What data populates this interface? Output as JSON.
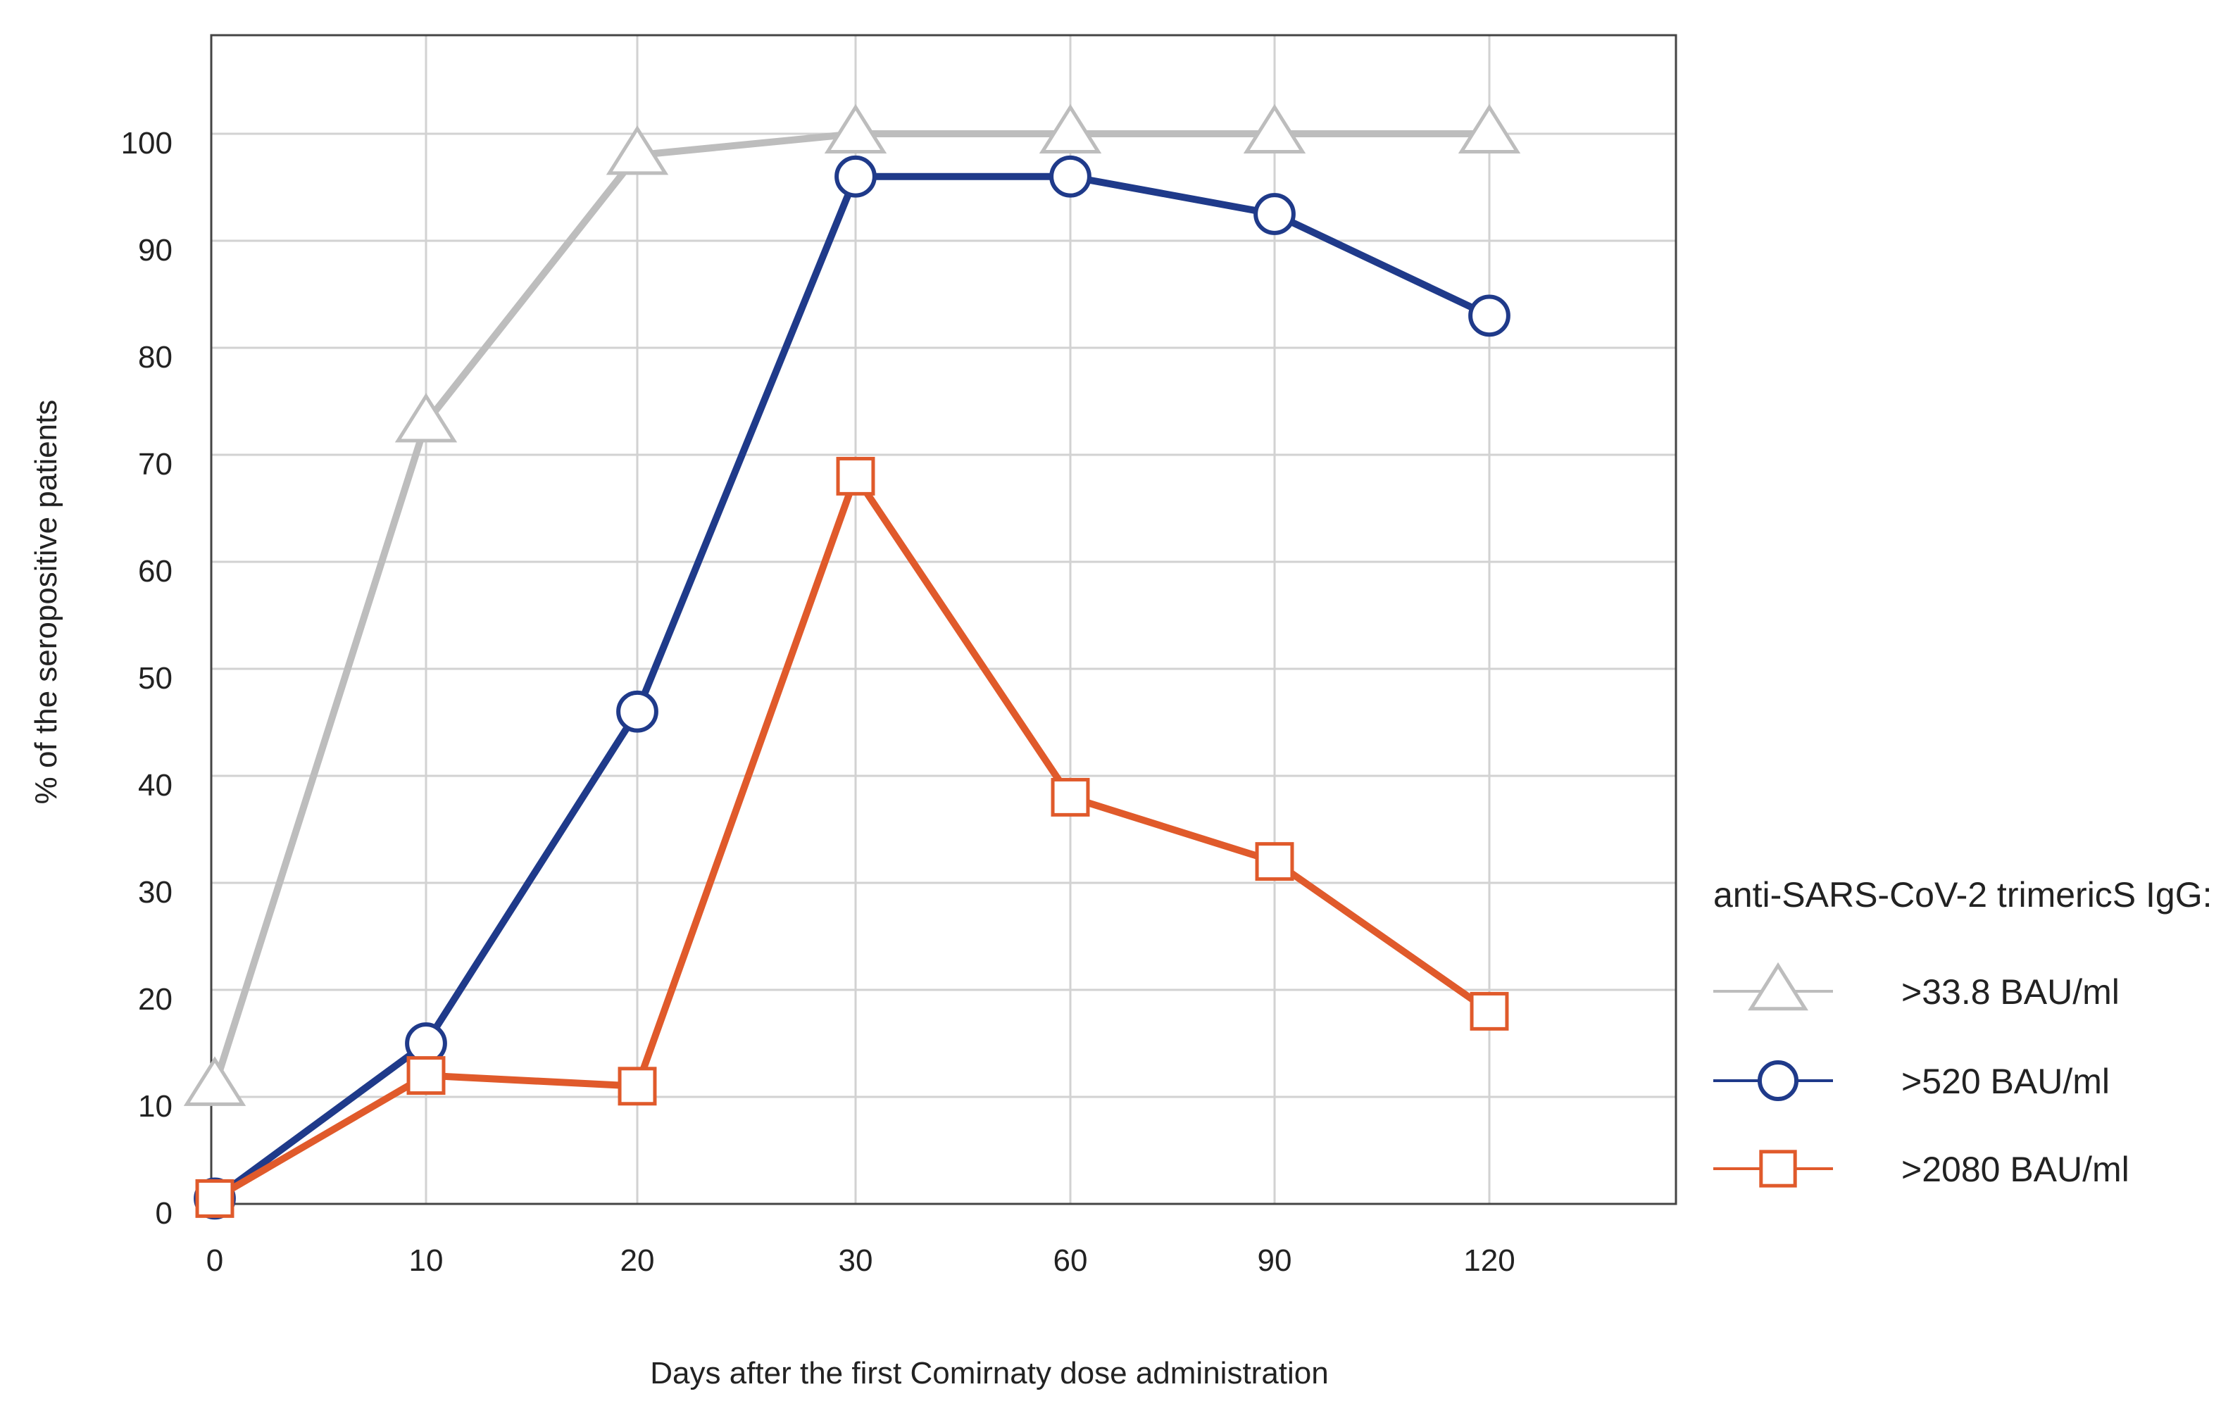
{
  "chart_data": {
    "type": "line",
    "title": "",
    "xlabel": "Days after the first Comirnaty dose administration",
    "ylabel": "% of the seropositive patients",
    "categories": [
      "0",
      "10",
      "20",
      "30",
      "60",
      "90",
      "120"
    ],
    "x_scale": "categorical",
    "ylim": [
      0,
      100
    ],
    "yticks": [
      0,
      10,
      20,
      30,
      40,
      50,
      60,
      70,
      80,
      90,
      100
    ],
    "grid": true,
    "legend": {
      "title": "anti-SARS-CoV-2 trimericS IgG:",
      "placement": "right"
    },
    "series": [
      {
        "name": ">33.8 BAU/ml",
        "color": "#bdbdbd",
        "marker": "triangle",
        "values": [
          11,
          73,
          98,
          100,
          100,
          100,
          100
        ]
      },
      {
        "name": ">520 BAU/ml",
        "color": "#1f3a8a",
        "marker": "circle",
        "values": [
          0.5,
          15,
          46,
          96,
          96,
          92.5,
          83
        ]
      },
      {
        "name": ">2080 BAU/ml",
        "color": "#e05a2b",
        "marker": "square",
        "values": [
          0.5,
          12,
          11,
          68,
          38,
          32,
          18
        ]
      }
    ]
  }
}
